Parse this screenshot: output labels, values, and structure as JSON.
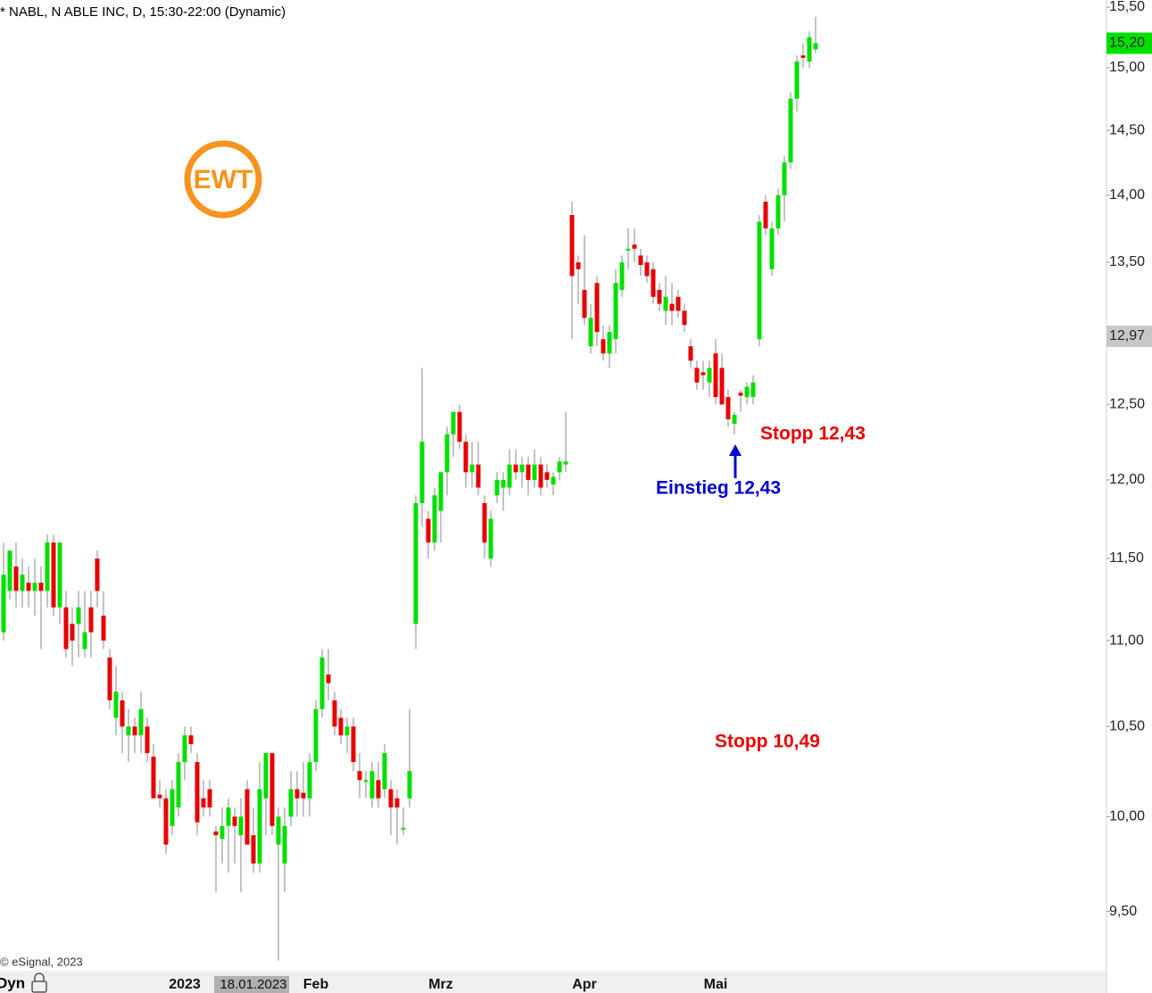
{
  "chart_data": {
    "type": "candlestick",
    "title": "* NABL, N ABLE INC, D, 15:30-22:00 (Dynamic)",
    "copyright": "© eSignal, 2023",
    "logo_text": "EWT",
    "mode_label": "Dyn",
    "log_scale": true,
    "ylim": [
      9.2,
      15.56
    ],
    "yticks": [
      {
        "value": 9.5,
        "label": "9,50"
      },
      {
        "value": 10,
        "label": "10,00"
      },
      {
        "value": 10.5,
        "label": "10,50"
      },
      {
        "value": 11,
        "label": "11,00"
      },
      {
        "value": 11.5,
        "label": "11,50"
      },
      {
        "value": 12,
        "label": "12,00"
      },
      {
        "value": 12.5,
        "label": "12,50"
      },
      {
        "value": 13.5,
        "label": "13,50"
      },
      {
        "value": 14,
        "label": "14,00"
      },
      {
        "value": 14.5,
        "label": "14,50"
      },
      {
        "value": 15,
        "label": "15,00"
      },
      {
        "value": 15.5,
        "label": "15,50"
      }
    ],
    "price_markers": [
      {
        "value": 15.2,
        "label": "15,20",
        "color": "#00e000"
      },
      {
        "value": 12.97,
        "label": "12,97",
        "color": "#c8c8c8"
      }
    ],
    "up_color": "#00e000",
    "down_color": "#e80000",
    "annotations": [
      {
        "text": "Stopp 12,43",
        "color": "#e80000"
      },
      {
        "text": "Einstieg 12,43",
        "color": "#0000d0"
      },
      {
        "text": "Stopp 10,49",
        "color": "#e80000"
      }
    ],
    "categories": [
      null,
      null,
      null,
      null,
      null,
      null,
      null,
      null,
      null,
      null,
      null,
      null,
      null,
      null,
      null,
      null,
      null,
      null,
      null,
      null,
      null,
      null,
      null,
      null,
      null,
      null,
      null,
      null,
      null,
      "2023",
      null,
      null,
      null,
      null,
      null,
      null,
      null,
      null,
      null,
      null,
      "18.01.2023",
      null,
      null,
      null,
      null,
      null,
      null,
      null,
      null,
      null,
      "Feb",
      null,
      null,
      null,
      null,
      null,
      null,
      null,
      null,
      null,
      null,
      null,
      null,
      null,
      null,
      null,
      null,
      null,
      null,
      null,
      "Mrz",
      null,
      null,
      null,
      null,
      null,
      null,
      null,
      null,
      null,
      null,
      null,
      null,
      null,
      null,
      null,
      null,
      null,
      null,
      null,
      null,
      null,
      null,
      "Apr",
      null,
      null,
      null,
      null,
      null,
      null,
      null,
      null,
      null,
      null,
      null,
      null,
      null,
      null,
      null,
      null,
      null,
      null,
      null,
      null,
      "Mai",
      null,
      null,
      null,
      null,
      null,
      null,
      null,
      null,
      null,
      null,
      null,
      null,
      null,
      null,
      null,
      null
    ],
    "open": [
      11.05,
      11.3,
      11.45,
      11.3,
      11.35,
      11.3,
      11.35,
      11.3,
      11.6,
      11.2,
      11.2,
      11.1,
      11.1,
      10.95,
      11.2,
      11.5,
      11.15,
      10.9,
      10.55,
      10.65,
      10.45,
      10.5,
      10.45,
      10.5,
      10.33,
      10.12,
      10.1,
      9.95,
      10.05,
      10.3,
      10.45,
      10.3,
      10.1,
      10.15,
      9.92,
      9.88,
      9.95,
      10.0,
      9.9,
      10.15,
      9.9,
      9.75,
      10.1,
      10.35,
      9.85,
      9.75,
      10.0,
      10.15,
      10.13,
      10.1,
      10.3,
      10.6,
      10.8,
      10.65,
      10.55,
      10.45,
      10.5,
      10.25,
      10.2,
      10.1,
      10.2,
      10.15,
      10.15,
      10.1,
      9.93,
      10.1,
      11.1,
      11.85,
      11.75,
      11.6,
      11.8,
      12.05,
      12.3,
      12.45,
      12.25,
      12.05,
      12.1,
      11.85,
      11.5,
      11.9,
      11.95,
      11.95,
      12.1,
      12.05,
      12.1,
      12.0,
      12.1,
      12.05,
      11.97,
      12.05,
      12.1,
      13.85,
      13.5,
      13.3,
      12.9,
      13.35,
      12.95,
      12.85,
      12.95,
      13.3,
      13.6,
      13.63,
      13.55,
      13.5,
      13.45,
      13.3,
      13.15,
      13.2,
      13.25,
      13.15,
      12.9,
      12.75,
      12.72,
      12.65,
      12.85,
      12.75,
      12.55,
      12.37,
      12.58,
      12.55,
      12.55,
      12.95,
      13.95,
      13.45,
      13.75,
      14.0,
      14.25,
      14.75,
      15.1,
      15.05,
      15.15
    ],
    "high": [
      11.6,
      11.55,
      11.6,
      11.5,
      11.45,
      11.5,
      11.45,
      11.65,
      11.65,
      11.6,
      11.3,
      11.2,
      11.3,
      11.3,
      11.3,
      11.55,
      11.3,
      10.95,
      10.85,
      10.7,
      10.6,
      10.55,
      10.7,
      10.55,
      10.4,
      10.2,
      10.15,
      10.2,
      10.35,
      10.5,
      10.5,
      10.35,
      10.2,
      10.2,
      9.95,
      10.05,
      10.1,
      10.05,
      10.1,
      10.2,
      10.05,
      10.3,
      10.35,
      10.35,
      10.05,
      10.05,
      10.25,
      10.25,
      10.3,
      10.35,
      10.65,
      10.95,
      10.95,
      10.7,
      10.6,
      10.55,
      10.55,
      10.35,
      10.25,
      10.3,
      10.3,
      10.4,
      10.2,
      10.15,
      10.05,
      10.6,
      11.9,
      12.75,
      11.8,
      11.95,
      12.05,
      12.35,
      12.45,
      12.5,
      12.3,
      12.25,
      12.25,
      11.9,
      11.8,
      12.05,
      12.05,
      12.2,
      12.2,
      12.15,
      12.15,
      12.2,
      12.15,
      12.1,
      12.05,
      12.15,
      12.45,
      13.95,
      13.55,
      13.7,
      13.2,
      13.4,
      13.05,
      13.05,
      13.45,
      13.55,
      13.75,
      13.75,
      13.6,
      13.55,
      13.5,
      13.35,
      13.4,
      13.35,
      13.3,
      13.2,
      12.95,
      12.8,
      12.8,
      12.8,
      12.95,
      12.85,
      12.6,
      12.45,
      12.6,
      12.65,
      12.7,
      13.85,
      14.0,
      13.8,
      14.05,
      14.3,
      14.8,
      15.1,
      15.2,
      15.3,
      15.42
    ],
    "low": [
      11.0,
      11.25,
      11.2,
      11.2,
      11.2,
      11.15,
      10.95,
      11.2,
      11.15,
      11.1,
      10.9,
      10.85,
      10.9,
      10.9,
      10.9,
      11.2,
      10.95,
      10.6,
      10.45,
      10.35,
      10.3,
      10.35,
      10.35,
      10.3,
      10.1,
      10.05,
      9.8,
      9.9,
      10.0,
      10.2,
      10.35,
      9.9,
      10.0,
      10.0,
      9.6,
      9.75,
      9.7,
      9.75,
      9.6,
      9.85,
      9.7,
      9.7,
      9.9,
      9.9,
      9.25,
      9.6,
      9.95,
      10.0,
      10.0,
      10.0,
      10.25,
      10.55,
      10.65,
      10.45,
      10.4,
      10.35,
      10.25,
      10.1,
      10.1,
      10.05,
      10.05,
      10.1,
      9.9,
      9.85,
      9.9,
      10.05,
      10.95,
      11.7,
      11.5,
      11.55,
      11.6,
      11.9,
      12.15,
      12.2,
      11.95,
      11.95,
      11.9,
      11.5,
      11.45,
      11.85,
      11.8,
      11.9,
      12.0,
      11.95,
      11.9,
      11.95,
      11.9,
      11.95,
      11.9,
      12.0,
      12.05,
      12.95,
      13.2,
      13.05,
      12.85,
      12.9,
      12.8,
      12.75,
      12.85,
      13.25,
      13.45,
      13.5,
      13.4,
      13.35,
      13.2,
      13.15,
      13.05,
      13.05,
      13.1,
      13.0,
      12.75,
      12.6,
      12.6,
      12.55,
      12.5,
      12.5,
      12.35,
      12.3,
      12.45,
      12.5,
      12.5,
      12.9,
      13.7,
      13.4,
      13.7,
      13.8,
      14.2,
      14.65,
      15.0,
      15.0,
      15.12
    ],
    "close": [
      11.4,
      11.55,
      11.3,
      11.4,
      11.3,
      11.35,
      11.3,
      11.6,
      11.2,
      11.6,
      10.95,
      11.0,
      11.2,
      11.05,
      11.05,
      11.3,
      11.0,
      10.65,
      10.7,
      10.5,
      10.5,
      10.45,
      10.6,
      10.35,
      10.1,
      10.1,
      9.85,
      10.15,
      10.3,
      10.45,
      10.4,
      9.97,
      10.05,
      10.05,
      9.9,
      9.95,
      10.05,
      9.95,
      10.0,
      9.85,
      9.75,
      10.15,
      10.35,
      9.95,
      10.0,
      9.95,
      10.15,
      10.1,
      10.1,
      10.3,
      10.6,
      10.9,
      10.75,
      10.5,
      10.45,
      10.5,
      10.3,
      10.2,
      10.2,
      10.25,
      10.1,
      10.35,
      10.05,
      10.05,
      9.94,
      10.25,
      11.85,
      12.25,
      11.6,
      11.9,
      12.05,
      12.3,
      12.45,
      12.25,
      12.05,
      12.1,
      11.95,
      11.6,
      11.75,
      12.0,
      12.0,
      12.1,
      12.05,
      12.1,
      12.0,
      12.1,
      11.95,
      12.0,
      12.02,
      12.12,
      12.12,
      13.4,
      13.45,
      13.1,
      13.1,
      13.0,
      12.85,
      13.0,
      13.35,
      13.5,
      13.6,
      13.6,
      13.48,
      13.4,
      13.25,
      13.2,
      13.25,
      13.15,
      13.15,
      13.05,
      12.8,
      12.65,
      12.7,
      12.75,
      12.55,
      12.5,
      12.4,
      12.43,
      12.56,
      12.62,
      12.65,
      13.8,
      13.75,
      13.75,
      14.0,
      14.25,
      14.75,
      15.05,
      15.08,
      15.25,
      15.2
    ]
  }
}
